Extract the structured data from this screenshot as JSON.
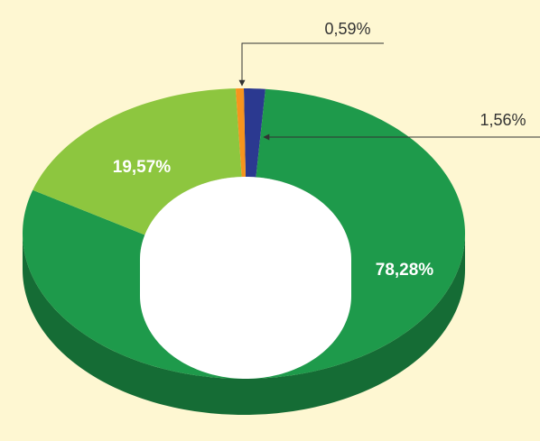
{
  "chart_data": {
    "type": "pie",
    "donut": true,
    "values": [
      1.56,
      78.28,
      19.57,
      0.59
    ],
    "value_labels": [
      "1,56%",
      "78,28%",
      "19,57%",
      "0,59%"
    ],
    "colors": [
      "#2b3990",
      "#1e9a4b",
      "#8dc63f",
      "#f7941d"
    ]
  }
}
